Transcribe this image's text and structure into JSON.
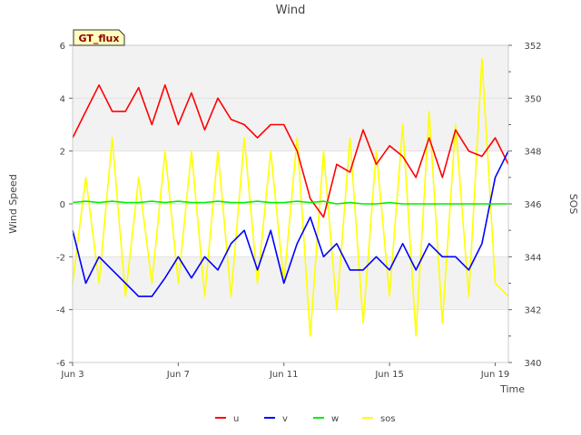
{
  "chart_data": {
    "type": "line",
    "title": "Wind",
    "badge": "GT_flux",
    "xlabel": "Time",
    "ylabel": "Wind Speed",
    "y2label": "SOS",
    "xlim": [
      0,
      16.5
    ],
    "ylim": [
      -6,
      6
    ],
    "y2lim": [
      340,
      352
    ],
    "x_ticks": [
      {
        "x": 0,
        "label": "Jun 3"
      },
      {
        "x": 4,
        "label": "Jun 7"
      },
      {
        "x": 8,
        "label": "Jun 11"
      },
      {
        "x": 12,
        "label": "Jun 15"
      },
      {
        "x": 16,
        "label": "Jun 19"
      }
    ],
    "y_ticks": [
      "-6",
      "-4",
      "-2",
      "0",
      "2",
      "4",
      "6"
    ],
    "y2_ticks": [
      "340",
      "342",
      "344",
      "346",
      "348",
      "350",
      "352"
    ],
    "bands": [
      [
        -4,
        -2
      ],
      [
        2,
        6
      ]
    ],
    "series": [
      {
        "name": "u",
        "color": "#ff0000",
        "axis": "left",
        "x": [
          0,
          0.5,
          1,
          1.5,
          2,
          2.5,
          3,
          3.5,
          4,
          4.5,
          5,
          5.5,
          6,
          6.5,
          7,
          7.5,
          8,
          8.5,
          9,
          9.5,
          10,
          10.5,
          11,
          11.5,
          12,
          12.5,
          13,
          13.5,
          14,
          14.5,
          15,
          15.5,
          16,
          16.5
        ],
        "values": [
          2.5,
          3.5,
          4.5,
          3.5,
          3.5,
          4.4,
          3.0,
          4.5,
          3.0,
          4.2,
          2.8,
          4.0,
          3.2,
          3.0,
          2.5,
          3.0,
          3.0,
          2.0,
          0.2,
          -0.5,
          1.5,
          1.2,
          2.8,
          1.5,
          2.2,
          1.8,
          1.0,
          2.5,
          1.0,
          2.8,
          2.0,
          1.8,
          2.5,
          1.5
        ]
      },
      {
        "name": "v",
        "color": "#0000ff",
        "axis": "left",
        "x": [
          0,
          0.5,
          1,
          1.5,
          2,
          2.5,
          3,
          3.5,
          4,
          4.5,
          5,
          5.5,
          6,
          6.5,
          7,
          7.5,
          8,
          8.5,
          9,
          9.5,
          10,
          10.5,
          11,
          11.5,
          12,
          12.5,
          13,
          13.5,
          14,
          14.5,
          15,
          15.5,
          16,
          16.5
        ],
        "values": [
          -1.0,
          -3.0,
          -2.0,
          -2.5,
          -3.0,
          -3.5,
          -3.5,
          -2.8,
          -2.0,
          -2.8,
          -2.0,
          -2.5,
          -1.5,
          -1.0,
          -2.5,
          -1.0,
          -3.0,
          -1.5,
          -0.5,
          -2.0,
          -1.5,
          -2.5,
          -2.5,
          -2.0,
          -2.5,
          -1.5,
          -2.5,
          -1.5,
          -2.0,
          -2.0,
          -2.5,
          -1.5,
          1.0,
          2.0
        ]
      },
      {
        "name": "w",
        "color": "#00ee00",
        "axis": "left",
        "x": [
          0,
          0.5,
          1,
          1.5,
          2,
          2.5,
          3,
          3.5,
          4,
          4.5,
          5,
          5.5,
          6,
          6.5,
          7,
          7.5,
          8,
          8.5,
          9,
          9.5,
          10,
          10.5,
          11,
          11.5,
          12,
          12.5,
          13,
          13.5,
          14,
          14.5,
          15,
          15.5,
          16,
          16.5
        ],
        "values": [
          0.05,
          0.1,
          0.05,
          0.1,
          0.05,
          0.05,
          0.1,
          0.05,
          0.1,
          0.05,
          0.05,
          0.1,
          0.05,
          0.05,
          0.1,
          0.05,
          0.05,
          0.1,
          0.05,
          0.1,
          0.0,
          0.05,
          0.0,
          0.0,
          0.05,
          0.0,
          0.0,
          0.0,
          0.0,
          0.0,
          0.0,
          0.0,
          0.0,
          0.0
        ]
      },
      {
        "name": "sos",
        "color": "#ffff00",
        "axis": "right",
        "x": [
          0,
          0.5,
          1,
          1.5,
          2,
          2.5,
          3,
          3.5,
          4,
          4.5,
          5,
          5.5,
          6,
          6.5,
          7,
          7.5,
          8,
          8.5,
          9,
          9.5,
          10,
          10.5,
          11,
          11.5,
          12,
          12.5,
          13,
          13.5,
          14,
          14.5,
          15,
          15.5,
          16,
          16.5
        ],
        "values": [
          343.0,
          347.0,
          343.0,
          348.5,
          342.5,
          347.0,
          343.0,
          348.0,
          343.0,
          348.0,
          342.5,
          348.0,
          342.5,
          348.5,
          343.0,
          348.0,
          343.0,
          348.5,
          341.0,
          348.0,
          342.0,
          348.5,
          341.5,
          348.0,
          342.5,
          349.0,
          341.0,
          349.5,
          341.5,
          349.0,
          342.5,
          351.5,
          343.0,
          342.5
        ]
      }
    ]
  }
}
